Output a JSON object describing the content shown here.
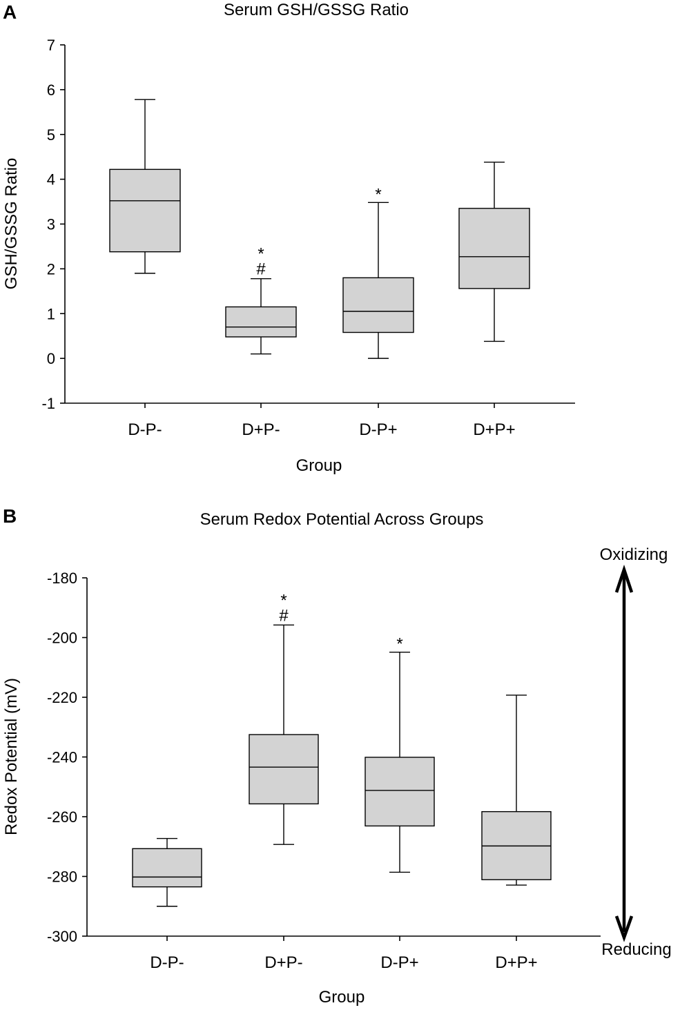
{
  "chart_data": [
    {
      "panel": "A",
      "type": "box",
      "title": "Serum GSH/GSSG Ratio",
      "xlabel": "Group",
      "ylabel": "GSH/GSSG Ratio",
      "ylim": [
        -1,
        7
      ],
      "yticks": [
        -1,
        0,
        1,
        2,
        3,
        4,
        5,
        6,
        7
      ],
      "categories": [
        "D-P-",
        "D+P-",
        "D-P+",
        "D+P+"
      ],
      "boxes": [
        {
          "min": 1.9,
          "q1": 2.38,
          "median": 3.52,
          "q3": 4.22,
          "max": 5.78
        },
        {
          "min": 0.1,
          "q1": 0.48,
          "median": 0.7,
          "q3": 1.15,
          "max": 1.78
        },
        {
          "min": 0.0,
          "q1": 0.58,
          "median": 1.05,
          "q3": 1.8,
          "max": 3.48
        },
        {
          "min": 0.38,
          "q1": 1.56,
          "median": 2.27,
          "q3": 3.35,
          "max": 4.38
        }
      ],
      "annotations": [
        {
          "category": "D+P-",
          "lines": [
            "*",
            "#"
          ]
        },
        {
          "category": "D-P+",
          "lines": [
            "*"
          ]
        }
      ]
    },
    {
      "panel": "B",
      "type": "box",
      "title": "Serum Redox Potential Across Groups",
      "xlabel": "Group",
      "ylabel": "Redox Potential (mV)",
      "ylim": [
        -300,
        -180
      ],
      "yticks": [
        -300,
        -280,
        -260,
        -240,
        -220,
        -200,
        -180
      ],
      "categories": [
        "D-P-",
        "D+P-",
        "D-P+",
        "D+P+"
      ],
      "boxes": [
        {
          "min": -290,
          "q1": -283.5,
          "median": -280.2,
          "q3": -270.7,
          "max": -267.3
        },
        {
          "min": -269.3,
          "q1": -255.7,
          "median": -243.4,
          "q3": -232.5,
          "max": -195.8
        },
        {
          "min": -278.6,
          "q1": -263.1,
          "median": -251.2,
          "q3": -240.1,
          "max": -204.9
        },
        {
          "min": -282.9,
          "q1": -281.1,
          "median": -269.8,
          "q3": -258.3,
          "max": -219.3
        }
      ],
      "annotations": [
        {
          "category": "D+P-",
          "lines": [
            "*",
            "#"
          ]
        },
        {
          "category": "D-P+",
          "lines": [
            "*"
          ]
        }
      ],
      "direction_labels": {
        "top": "Oxidizing",
        "bottom": "Reducing"
      }
    }
  ]
}
